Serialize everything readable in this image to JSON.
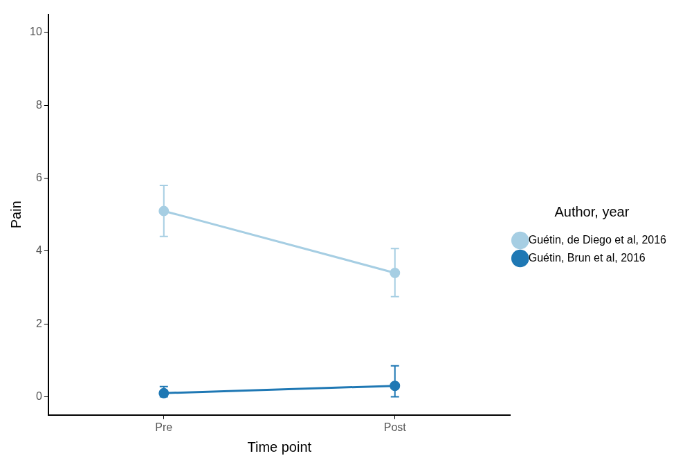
{
  "chart_data": {
    "type": "line",
    "xlabel": "Time point",
    "ylabel": "Pain",
    "legend_title": "Author, year",
    "categories": [
      "Pre",
      "Post"
    ],
    "series": [
      {
        "name": "Guétin, de Diego et al, 2016",
        "color": "#a6cee3",
        "values": [
          5.1,
          3.4
        ],
        "errors": [
          [
            4.4,
            5.8
          ],
          [
            2.75,
            4.07
          ]
        ]
      },
      {
        "name": "Guétin, Brun et al, 2016",
        "color": "#1f78b4",
        "values": [
          0.1,
          0.3
        ],
        "errors": [
          [
            0,
            0.28
          ],
          [
            0,
            0.85
          ]
        ]
      }
    ],
    "ylim": [
      -0.5,
      10.5
    ],
    "yticks": [
      0,
      2,
      4,
      6,
      8,
      10
    ],
    "grid": false,
    "legend": "right",
    "marker": "circle",
    "line_style": "solid"
  }
}
